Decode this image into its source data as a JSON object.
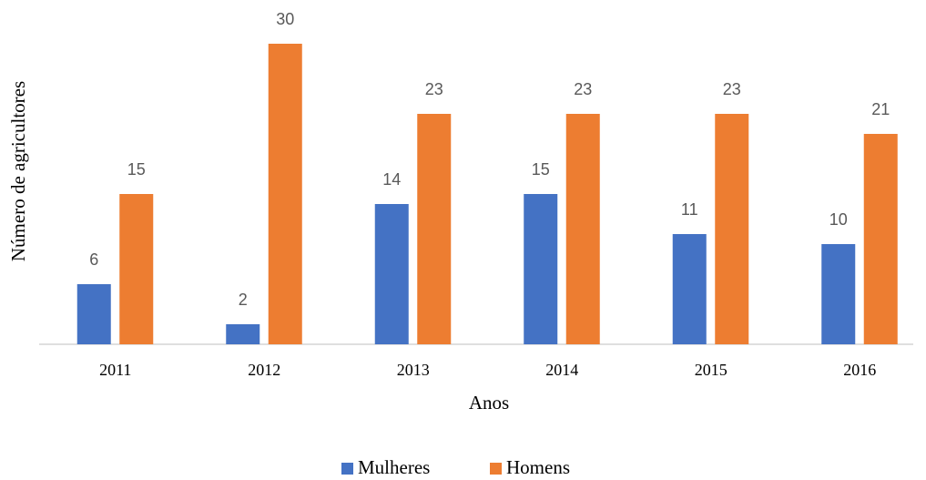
{
  "chart_data": {
    "type": "bar",
    "xlabel": "Anos",
    "ylabel": "Número de agricultores",
    "categories": [
      "2011",
      "2012",
      "2013",
      "2014",
      "2015",
      "2016"
    ],
    "series": [
      {
        "name": "Mulheres",
        "color": "#4472c4",
        "values": [
          6,
          2,
          14,
          15,
          11,
          10
        ]
      },
      {
        "name": "Homens",
        "color": "#ed7d31",
        "values": [
          15,
          30,
          23,
          23,
          23,
          21
        ]
      }
    ],
    "ylim": [
      0,
      30
    ]
  }
}
